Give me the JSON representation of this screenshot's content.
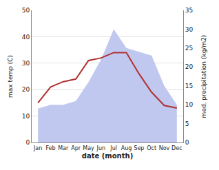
{
  "chart_data": {
    "type": "line",
    "categories": [
      "Jan",
      "Feb",
      "Mar",
      "Apr",
      "May",
      "Jun",
      "Jul",
      "Aug",
      "Sep",
      "Oct",
      "Nov",
      "Dec"
    ],
    "series": [
      {
        "type": "area",
        "axis": "y2",
        "color": "#c0c8f0",
        "values": [
          9,
          10,
          10,
          11,
          16,
          22,
          30,
          25,
          24,
          23,
          15,
          10
        ]
      },
      {
        "type": "line",
        "color": "#b03030",
        "values": [
          15,
          21,
          23,
          24,
          31,
          32,
          34,
          34,
          26,
          19,
          14,
          13
        ]
      }
    ],
    "xlabel": "date (month)",
    "ylabel": "max temp (C)",
    "y2label": "med. precipitation (kg/m2)",
    "ylim": [
      0,
      50
    ],
    "yticks": [
      0,
      10,
      20,
      30,
      40,
      50
    ],
    "y2lim": [
      0,
      35
    ],
    "y2ticks": [
      0,
      5,
      10,
      15,
      20,
      25,
      30,
      35
    ],
    "grid": true
  }
}
